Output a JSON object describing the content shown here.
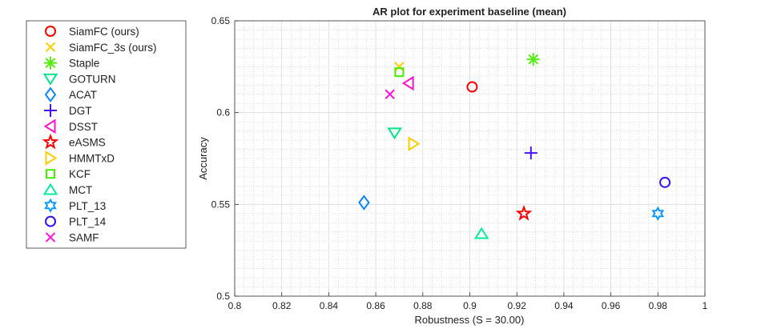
{
  "chart_data": {
    "type": "scatter",
    "title": "AR plot for experiment baseline (mean)",
    "xlabel": "Robustness (S = 30.00)",
    "ylabel": "Accuracy",
    "xlim": [
      0.8,
      1.0
    ],
    "ylim": [
      0.5,
      0.65
    ],
    "xticks": [
      "0.8",
      "0.82",
      "0.84",
      "0.86",
      "0.88",
      "0.9",
      "0.92",
      "0.94",
      "0.96",
      "0.98",
      "1"
    ],
    "yticks": [
      "0.5",
      "0.55",
      "0.6",
      "0.65"
    ],
    "grid": true,
    "legend_position": "outside-left",
    "series": [
      {
        "name": "SiamFC (ours)",
        "marker": "circle",
        "color": "#ff0000",
        "x": 0.901,
        "y": 0.614
      },
      {
        "name": "SiamFC_3s (ours)",
        "marker": "x",
        "color": "#ffcc00",
        "x": 0.87,
        "y": 0.625
      },
      {
        "name": "Staple",
        "marker": "asterisk",
        "color": "#55ee11",
        "x": 0.927,
        "y": 0.629
      },
      {
        "name": "GOTURN",
        "marker": "triangle-down",
        "color": "#00e68a",
        "x": 0.868,
        "y": 0.589
      },
      {
        "name": "ACAT",
        "marker": "diamond",
        "color": "#0a84ff",
        "x": 0.855,
        "y": 0.551
      },
      {
        "name": "DGT",
        "marker": "plus",
        "color": "#4411ff",
        "x": 0.926,
        "y": 0.578
      },
      {
        "name": "DSST",
        "marker": "triangle-left",
        "color": "#ff11cc",
        "x": 0.874,
        "y": 0.616
      },
      {
        "name": "eASMS",
        "marker": "pentagram",
        "color": "#ff0000",
        "x": 0.923,
        "y": 0.545
      },
      {
        "name": "HMMTxD",
        "marker": "triangle-right",
        "color": "#ffcc00",
        "x": 0.876,
        "y": 0.583
      },
      {
        "name": "KCF",
        "marker": "square",
        "color": "#44ee00",
        "x": 0.87,
        "y": 0.622
      },
      {
        "name": "MCT",
        "marker": "triangle-up",
        "color": "#00ee99",
        "x": 0.905,
        "y": 0.534
      },
      {
        "name": "PLT_13",
        "marker": "hexagram",
        "color": "#0a99ff",
        "x": 0.98,
        "y": 0.545
      },
      {
        "name": "PLT_14",
        "marker": "circle",
        "color": "#3311ff",
        "x": 0.983,
        "y": 0.562
      },
      {
        "name": "SAMF",
        "marker": "x",
        "color": "#ff11dd",
        "x": 0.866,
        "y": 0.61
      }
    ]
  }
}
